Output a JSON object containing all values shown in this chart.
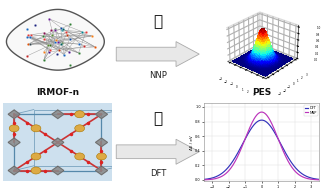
{
  "labels": {
    "top_left": "IRMOF-n",
    "top_right": "PES",
    "arrow_top": "NNP",
    "arrow_bottom": "DFT"
  },
  "pes_surface": {
    "x_range": [
      -3,
      3
    ],
    "y_range": [
      -3,
      3
    ],
    "sigma": 0.9,
    "elev": 28,
    "azim": -50
  },
  "dft_curve": {
    "x_range": [
      -3.5,
      3.5
    ],
    "peak_dft": 0.82,
    "sigma_dft": 1.15,
    "peak_nnp": 0.93,
    "sigma_nnp": 1.0,
    "color_dft": "#3333bb",
    "color_nnp": "#bb33bb",
    "legend_dft": "DFT",
    "legend_nnp": "NNP"
  },
  "bg_color": "#ffffff",
  "arrow_face": "#e8e8e8",
  "arrow_edge": "#aaaaaa",
  "label_font_size": 6.0,
  "label_font_size_bold": 6.5,
  "emoji_rocket": "🚀",
  "emoji_bike": "🚲"
}
